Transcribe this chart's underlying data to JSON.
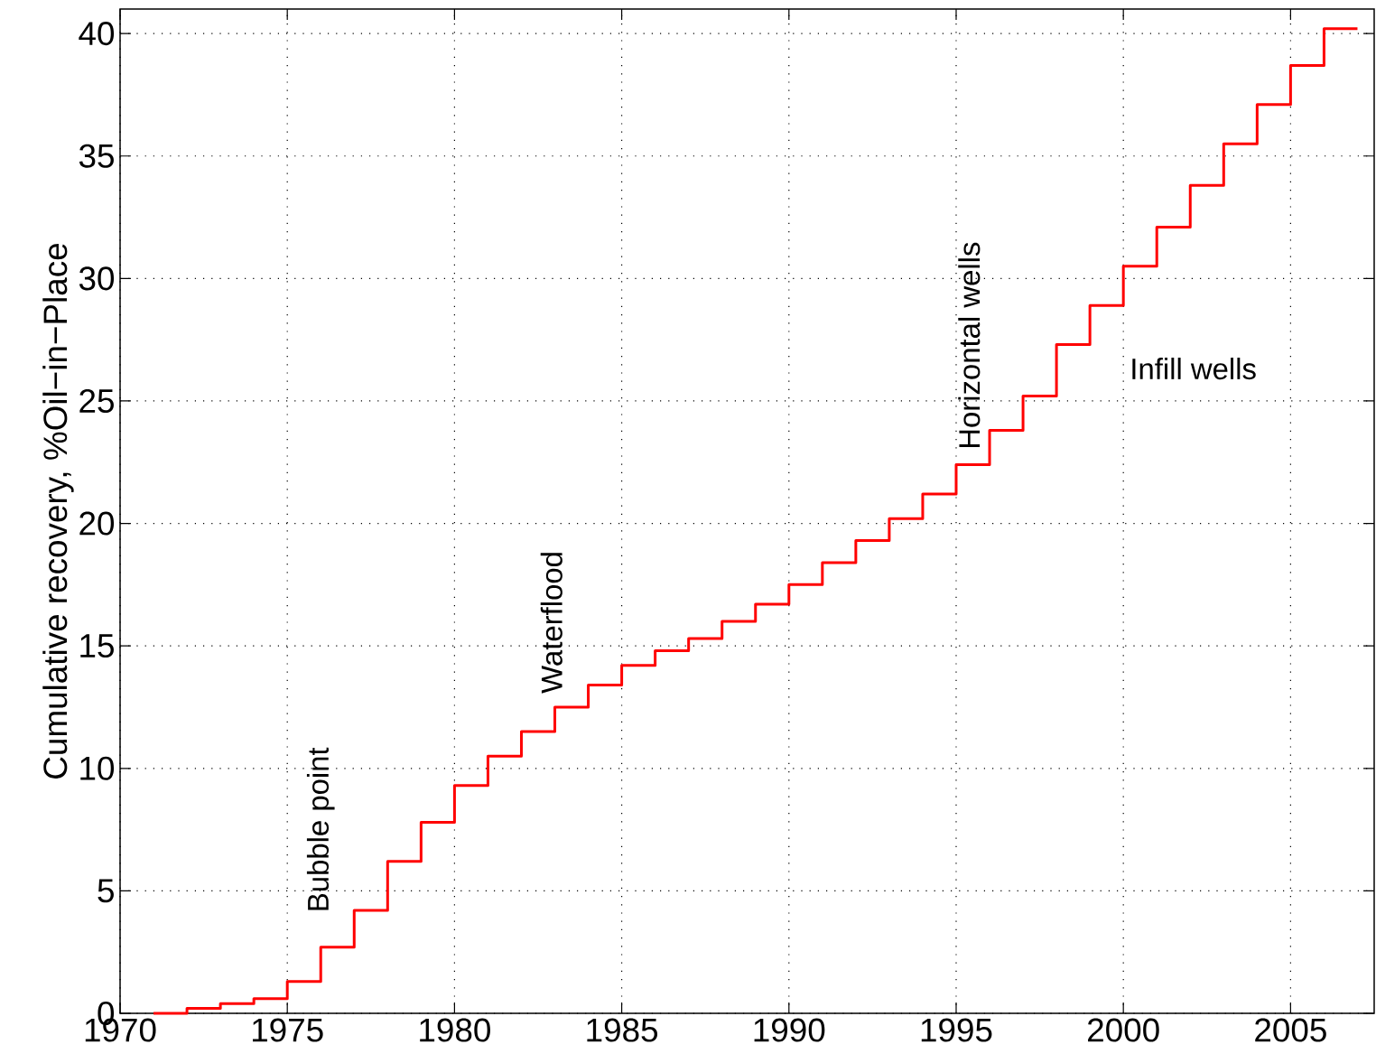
{
  "chart_data": {
    "type": "step",
    "xlabel": null,
    "ylabel": "Cumulative recovery, %Oil−in−Place",
    "x": [
      1971,
      1972,
      1973,
      1974,
      1975,
      1976,
      1977,
      1978,
      1979,
      1980,
      1981,
      1982,
      1983,
      1984,
      1985,
      1986,
      1987,
      1988,
      1989,
      1990,
      1991,
      1992,
      1993,
      1994,
      1995,
      1996,
      1997,
      1998,
      1999,
      2000,
      2001,
      2002,
      2003,
      2004,
      2005,
      2006,
      2007
    ],
    "series": [
      {
        "color": "#ff0000",
        "values": [
          0,
          0.2,
          0.4,
          0.6,
          1.3,
          2.7,
          4.2,
          6.2,
          7.8,
          9.3,
          10.5,
          11.5,
          12.5,
          13.4,
          14.2,
          14.8,
          15.3,
          16.0,
          16.7,
          17.5,
          18.4,
          19.3,
          20.2,
          21.2,
          22.4,
          23.8,
          25.2,
          27.3,
          28.9,
          30.5,
          32.1,
          33.8,
          35.5,
          37.1,
          38.7,
          40.2,
          40.2
        ]
      }
    ],
    "xlim": [
      1970,
      2007.5
    ],
    "ylim": [
      0,
      41
    ],
    "xticks": [
      1970,
      1975,
      1980,
      1985,
      1990,
      1995,
      2000,
      2005
    ],
    "yticks": [
      0,
      5,
      10,
      15,
      20,
      25,
      30,
      35,
      40
    ],
    "grid": true,
    "line_style": "solid",
    "annotations": [
      "Bubble point",
      "Waterflood",
      "Horizontal wells",
      "Infill wells"
    ]
  }
}
